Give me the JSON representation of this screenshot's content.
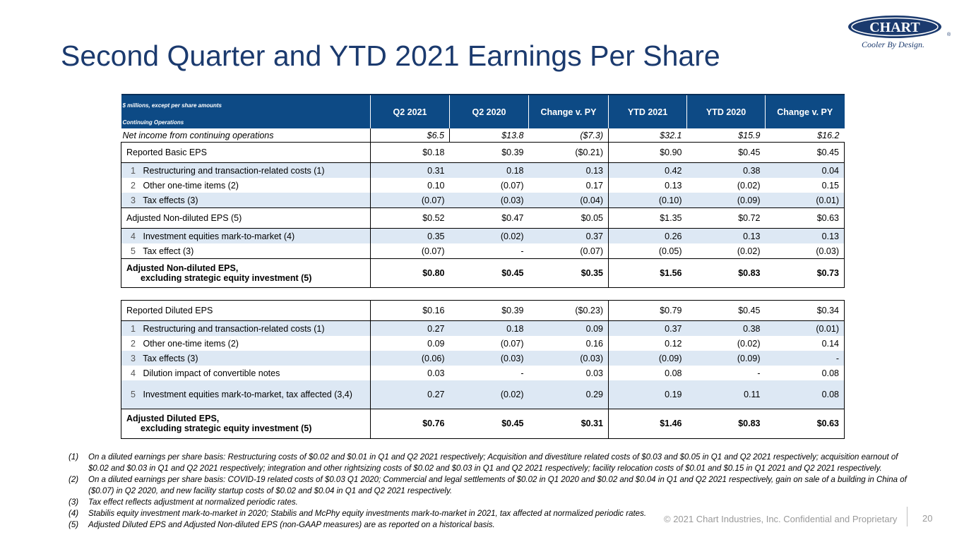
{
  "slide": {
    "title": "Second Quarter and YTD 2021 Earnings Per Share",
    "logo_text": "CHART",
    "tagline": "Cooler By Design.",
    "registered_mark": "®",
    "footer": "© 2021 Chart Industries, Inc. Confidential and Proprietary",
    "page_number": "20",
    "colors": {
      "title": "#1b3a6e",
      "header_bg": "#0d4a85",
      "row_shade": "#dde8f4"
    }
  },
  "table": {
    "header_note1": "$ millions, except per share amounts",
    "header_note2": "Continuing Operations",
    "columns": [
      "Q2 2021",
      "Q2 2020",
      "Change v. PY",
      "YTD 2021",
      "YTD 2020",
      "Change v. PY"
    ],
    "net_income": {
      "label": "Net income from continuing operations",
      "values": [
        "$6.5",
        "$13.8",
        "($7.3)",
        "$32.1",
        "$15.9",
        "$16.2"
      ]
    },
    "reported_basic": {
      "label": "Reported Basic EPS",
      "values": [
        "$0.18",
        "$0.39",
        "($0.21)",
        "$0.90",
        "$0.45",
        "$0.45"
      ]
    },
    "basic_adj1": [
      {
        "idx": "1",
        "label": "Restructuring and transaction-related costs (1)",
        "values": [
          "0.31",
          "0.18",
          "0.13",
          "0.42",
          "0.38",
          "0.04"
        ]
      },
      {
        "idx": "2",
        "label": "Other one-time items (2)",
        "values": [
          "0.10",
          "(0.07)",
          "0.17",
          "0.13",
          "(0.02)",
          "0.15"
        ]
      },
      {
        "idx": "3",
        "label": "Tax effects (3)",
        "values": [
          "(0.07)",
          "(0.03)",
          "(0.04)",
          "(0.10)",
          "(0.09)",
          "(0.01)"
        ]
      }
    ],
    "adj_nondiluted": {
      "label": "Adjusted Non-diluted EPS (5)",
      "values": [
        "$0.52",
        "$0.47",
        "$0.05",
        "$1.35",
        "$0.72",
        "$0.63"
      ]
    },
    "basic_adj2": [
      {
        "idx": "4",
        "label": "Investment equities mark-to-market (4)",
        "values": [
          "0.35",
          "(0.02)",
          "0.37",
          "0.26",
          "0.13",
          "0.13"
        ]
      },
      {
        "idx": "5",
        "label": "Tax effect (3)",
        "values": [
          "(0.07)",
          "-",
          "(0.07)",
          "(0.05)",
          "(0.02)",
          "(0.03)"
        ]
      }
    ],
    "adj_nondiluted_excl": {
      "label1": "Adjusted Non-diluted EPS,",
      "label2": "excluding strategic equity investment (5)",
      "values": [
        "$0.80",
        "$0.45",
        "$0.35",
        "$1.56",
        "$0.83",
        "$0.73"
      ]
    },
    "reported_diluted": {
      "label": "Reported Diluted EPS",
      "values": [
        "$0.16",
        "$0.39",
        "($0.23)",
        "$0.79",
        "$0.45",
        "$0.34"
      ]
    },
    "diluted_adj": [
      {
        "idx": "1",
        "label": "Restructuring and transaction-related costs (1)",
        "values": [
          "0.27",
          "0.18",
          "0.09",
          "0.37",
          "0.38",
          "(0.01)"
        ],
        "shade": true
      },
      {
        "idx": "2",
        "label": "Other one-time items (2)",
        "values": [
          "0.09",
          "(0.07)",
          "0.16",
          "0.12",
          "(0.02)",
          "0.14"
        ],
        "shade": false
      },
      {
        "idx": "3",
        "label": "Tax effects (3)",
        "values": [
          "(0.06)",
          "(0.03)",
          "(0.03)",
          "(0.09)",
          "(0.09)",
          "-"
        ],
        "shade": true
      },
      {
        "idx": "4",
        "label": "Dilution impact of convertible notes",
        "values": [
          "0.03",
          "-",
          "0.03",
          "0.08",
          "-",
          "0.08"
        ],
        "shade": false
      },
      {
        "idx": "5",
        "label": "Investment equities mark-to-market, tax affected (3,4)",
        "values": [
          "0.27",
          "(0.02)",
          "0.29",
          "0.19",
          "0.11",
          "0.08"
        ],
        "shade": true
      }
    ],
    "adj_diluted_excl": {
      "label1": "Adjusted Diluted EPS,",
      "label2": "excluding strategic equity investment (5)",
      "values": [
        "$0.76",
        "$0.45",
        "$0.31",
        "$1.46",
        "$0.83",
        "$0.63"
      ]
    }
  },
  "footnotes": [
    {
      "key": "(1)",
      "text": "On a diluted earnings per share basis: Restructuring costs of $0.02 and $0.01 in Q1 and Q2 2021 respectively; Acquisition and divestiture related costs of $0.03 and $0.05 in Q1 and Q2 2021 respectively; acquisition earnout of $0.02 and $0.03 in Q1 and Q2 2021 respectively; integration and other rightsizing costs of $0.02 and $0.03 in Q1 and Q2 2021 respectively; facility relocation costs of $0.01 and $0.15 in Q1 2021 and Q2 2021 respectively."
    },
    {
      "key": "(2)",
      "text": "On a diluted earnings per share basis: COVID-19 related costs of $0.03 Q1 2020; Commercial and legal settlements of $0.02 in Q1 2020 and $0.02  and $0.04 in Q1 and Q2 2021 respectively, gain on sale of a building in China of ($0.07) in Q2 2020, and new facility startup costs of $0.02 and $0.04 in Q1 and Q2 2021 respectively."
    },
    {
      "key": "(3)",
      "text": "Tax effect reflects adjustment at normalized periodic rates."
    },
    {
      "key": "(4)",
      "text": "Stabilis equity investment mark-to-market in 2020; Stabilis and McPhy equity investments mark-to-market in 2021, tax affected at normalized periodic rates."
    },
    {
      "key": "(5)",
      "text": "Adjusted Diluted EPS and Adjusted Non-diluted EPS (non-GAAP measures) are as reported on a historical basis."
    }
  ]
}
